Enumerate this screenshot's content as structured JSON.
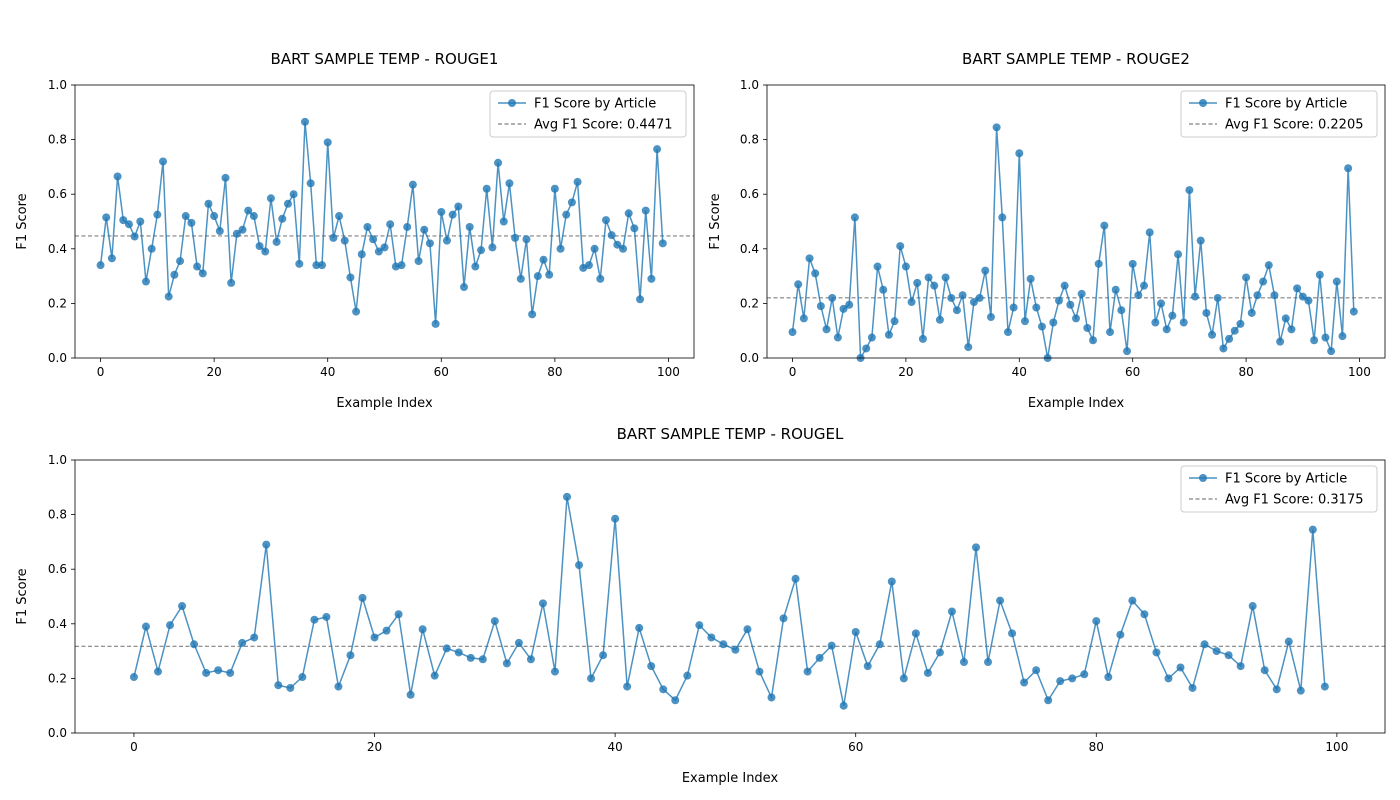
{
  "figure": {
    "background": "#ffffff"
  },
  "style": {
    "line_color": "#1f77b4",
    "avg_color": "#808080"
  },
  "chart_data": [
    {
      "type": "line",
      "title": "BART SAMPLE TEMP - ROUGE1",
      "xlabel": "Example Index",
      "ylabel": "F1 Score",
      "xlim": [
        -4.5,
        104.5
      ],
      "ylim": [
        0,
        1
      ],
      "xticks": [
        0,
        20,
        40,
        60,
        80,
        100
      ],
      "yticks": [
        0.0,
        0.2,
        0.4,
        0.6,
        0.8,
        1.0
      ],
      "grid": false,
      "legend_position": "top-right",
      "series": [
        {
          "name": "F1 Score by Article",
          "marker": "circle",
          "values": [
            0.34,
            0.515,
            0.365,
            0.665,
            0.505,
            0.49,
            0.445,
            0.5,
            0.28,
            0.4,
            0.525,
            0.72,
            0.225,
            0.305,
            0.355,
            0.52,
            0.495,
            0.335,
            0.31,
            0.565,
            0.52,
            0.465,
            0.66,
            0.275,
            0.455,
            0.47,
            0.54,
            0.52,
            0.41,
            0.39,
            0.585,
            0.425,
            0.51,
            0.565,
            0.6,
            0.345,
            0.865,
            0.64,
            0.34,
            0.34,
            0.79,
            0.44,
            0.52,
            0.43,
            0.295,
            0.17,
            0.38,
            0.48,
            0.435,
            0.39,
            0.405,
            0.49,
            0.335,
            0.34,
            0.48,
            0.635,
            0.355,
            0.47,
            0.42,
            0.125,
            0.535,
            0.43,
            0.525,
            0.555,
            0.26,
            0.48,
            0.335,
            0.395,
            0.62,
            0.405,
            0.715,
            0.5,
            0.64,
            0.44,
            0.29,
            0.435,
            0.16,
            0.3,
            0.36,
            0.305,
            0.62,
            0.4,
            0.525,
            0.57,
            0.645,
            0.33,
            0.34,
            0.4,
            0.29,
            0.505,
            0.45,
            0.415,
            0.4,
            0.53,
            0.475,
            0.215,
            0.54,
            0.29,
            0.765,
            0.42
          ]
        }
      ],
      "avg": {
        "value": 0.4471,
        "label": "Avg F1 Score: 0.4471"
      }
    },
    {
      "type": "line",
      "title": "BART SAMPLE TEMP - ROUGE2",
      "xlabel": "Example Index",
      "ylabel": "F1 Score",
      "xlim": [
        -4.5,
        104.5
      ],
      "ylim": [
        0,
        1
      ],
      "xticks": [
        0,
        20,
        40,
        60,
        80,
        100
      ],
      "yticks": [
        0.0,
        0.2,
        0.4,
        0.6,
        0.8,
        1.0
      ],
      "grid": false,
      "legend_position": "top-right",
      "series": [
        {
          "name": "F1 Score by Article",
          "marker": "circle",
          "values": [
            0.095,
            0.27,
            0.145,
            0.365,
            0.31,
            0.19,
            0.105,
            0.22,
            0.075,
            0.18,
            0.195,
            0.515,
            0.0,
            0.035,
            0.075,
            0.335,
            0.25,
            0.085,
            0.135,
            0.41,
            0.335,
            0.205,
            0.275,
            0.07,
            0.295,
            0.265,
            0.14,
            0.295,
            0.22,
            0.175,
            0.23,
            0.04,
            0.205,
            0.22,
            0.32,
            0.15,
            0.845,
            0.515,
            0.095,
            0.185,
            0.75,
            0.135,
            0.29,
            0.185,
            0.115,
            0.0,
            0.13,
            0.21,
            0.265,
            0.195,
            0.145,
            0.235,
            0.11,
            0.065,
            0.345,
            0.485,
            0.095,
            0.25,
            0.175,
            0.025,
            0.345,
            0.23,
            0.265,
            0.46,
            0.13,
            0.2,
            0.105,
            0.155,
            0.38,
            0.13,
            0.615,
            0.225,
            0.43,
            0.165,
            0.085,
            0.22,
            0.035,
            0.07,
            0.1,
            0.125,
            0.295,
            0.165,
            0.23,
            0.28,
            0.34,
            0.23,
            0.06,
            0.145,
            0.105,
            0.255,
            0.225,
            0.21,
            0.065,
            0.305,
            0.075,
            0.025,
            0.28,
            0.08,
            0.695,
            0.17
          ]
        }
      ],
      "avg": {
        "value": 0.2205,
        "label": "Avg F1 Score: 0.2205"
      }
    },
    {
      "type": "line",
      "title": "BART SAMPLE TEMP - ROUGEL",
      "xlabel": "Example Index",
      "ylabel": "F1 Score",
      "xlim": [
        -4.9,
        104.0
      ],
      "ylim": [
        0,
        1
      ],
      "xticks": [
        0,
        20,
        40,
        60,
        80,
        100
      ],
      "yticks": [
        0.0,
        0.2,
        0.4,
        0.6,
        0.8,
        1.0
      ],
      "grid": false,
      "legend_position": "top-right",
      "series": [
        {
          "name": "F1 Score by Article",
          "marker": "circle",
          "values": [
            0.205,
            0.39,
            0.225,
            0.395,
            0.465,
            0.325,
            0.22,
            0.23,
            0.22,
            0.33,
            0.35,
            0.69,
            0.175,
            0.165,
            0.205,
            0.415,
            0.425,
            0.17,
            0.285,
            0.495,
            0.35,
            0.375,
            0.435,
            0.14,
            0.38,
            0.21,
            0.31,
            0.295,
            0.275,
            0.27,
            0.41,
            0.255,
            0.33,
            0.27,
            0.475,
            0.225,
            0.865,
            0.615,
            0.2,
            0.285,
            0.785,
            0.17,
            0.385,
            0.245,
            0.16,
            0.12,
            0.21,
            0.395,
            0.35,
            0.325,
            0.305,
            0.38,
            0.225,
            0.13,
            0.42,
            0.565,
            0.225,
            0.275,
            0.32,
            0.1,
            0.37,
            0.245,
            0.325,
            0.555,
            0.2,
            0.365,
            0.22,
            0.295,
            0.445,
            0.26,
            0.68,
            0.26,
            0.485,
            0.365,
            0.185,
            0.23,
            0.12,
            0.19,
            0.2,
            0.215,
            0.41,
            0.205,
            0.36,
            0.485,
            0.435,
            0.295,
            0.2,
            0.24,
            0.165,
            0.325,
            0.3,
            0.285,
            0.245,
            0.465,
            0.23,
            0.16,
            0.335,
            0.155,
            0.745,
            0.17
          ]
        }
      ],
      "avg": {
        "value": 0.3175,
        "label": "Avg F1 Score: 0.3175"
      }
    }
  ]
}
